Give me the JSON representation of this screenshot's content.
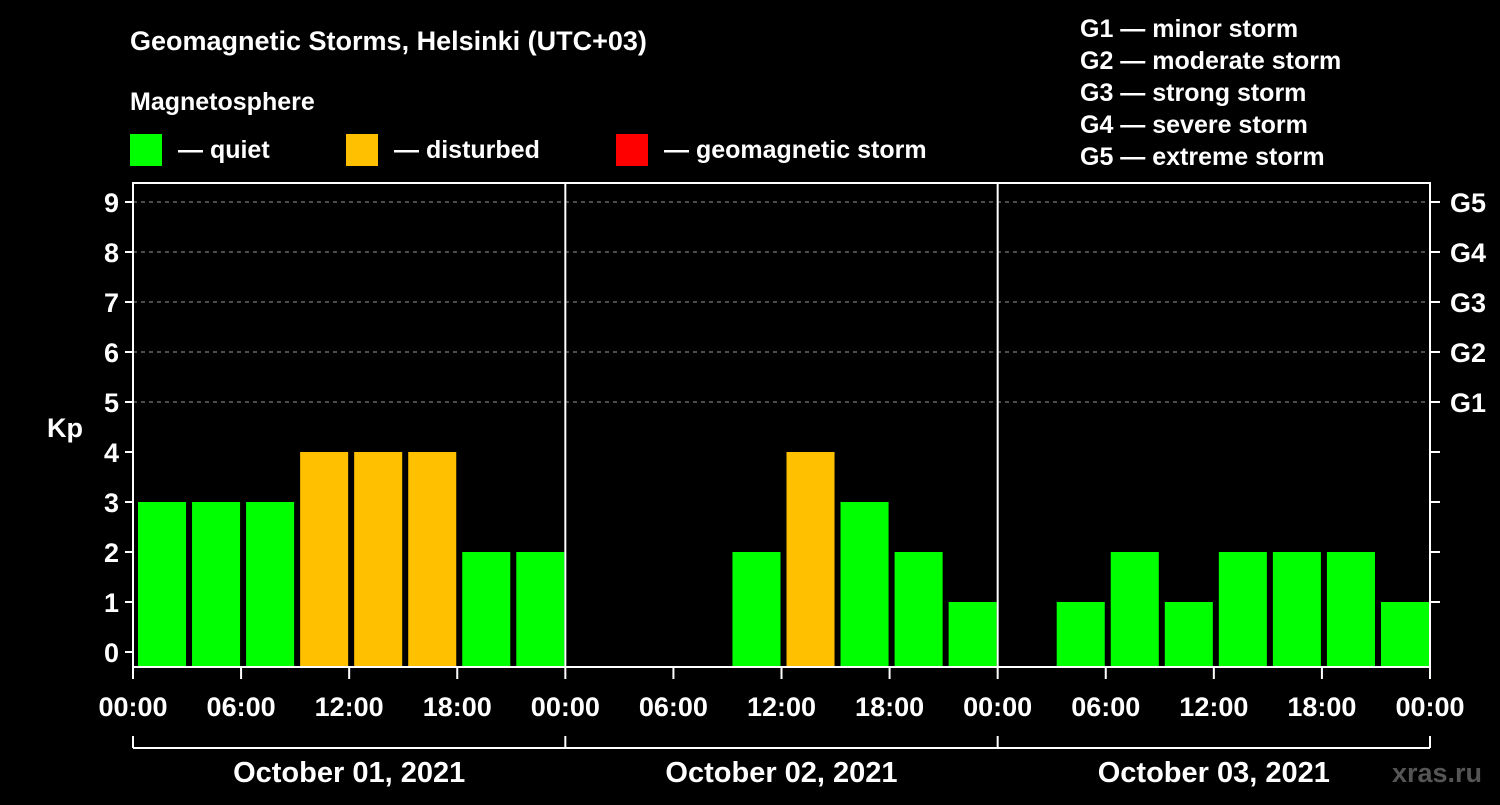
{
  "title": "Geomagnetic Storms, Helsinki (UTC+03)",
  "legend": {
    "heading": "Magnetosphere",
    "items": [
      {
        "label": "— quiet",
        "color": "#00ff00"
      },
      {
        "label": "— disturbed",
        "color": "#ffc000"
      },
      {
        "label": "— geomagnetic storm",
        "color": "#ff0000"
      }
    ]
  },
  "storm_scale": [
    "G1 — minor storm",
    "G2 — moderate storm",
    "G3 — strong storm",
    "G4 — severe storm",
    "G5 — extreme storm"
  ],
  "watermark": "xras.ru",
  "chart_data": {
    "type": "bar",
    "ylabel": "Kp",
    "ylim": [
      0,
      9
    ],
    "yticks": [
      "0",
      "1",
      "2",
      "3",
      "4",
      "5",
      "6",
      "7",
      "8",
      "9"
    ],
    "right_ticks": [
      {
        "kp": 5,
        "label": "G1"
      },
      {
        "kp": 6,
        "label": "G2"
      },
      {
        "kp": 7,
        "label": "G3"
      },
      {
        "kp": 8,
        "label": "G4"
      },
      {
        "kp": 9,
        "label": "G5"
      }
    ],
    "xtick_labels": [
      "00:00",
      "06:00",
      "12:00",
      "18:00",
      "00:00",
      "06:00",
      "12:00",
      "18:00",
      "00:00",
      "06:00",
      "12:00",
      "18:00",
      "00:00"
    ],
    "days": [
      "October 01, 2021",
      "October 02, 2021",
      "October 03, 2021"
    ],
    "grid": "dashed horizontal at Kp 5-9",
    "colors": {
      "quiet": "#00ff00",
      "disturbed": "#ffc000",
      "storm": "#ff0000"
    },
    "values": [
      3,
      3,
      3,
      4,
      4,
      4,
      2,
      2,
      null,
      null,
      null,
      2,
      4,
      3,
      2,
      1,
      null,
      1,
      2,
      1,
      2,
      2,
      2,
      1
    ]
  }
}
